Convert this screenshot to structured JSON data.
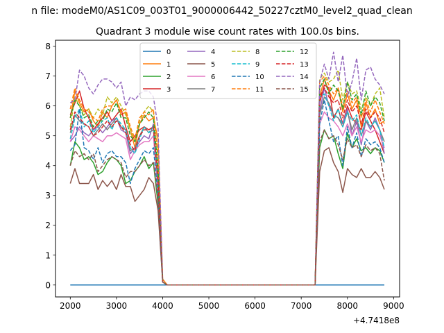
{
  "figure": {
    "suptitle": "n file: modeM0/AS1C09_003T01_9000006442_50227cztM0_level2_quad_clean",
    "offset_text": "+4.7418e8"
  },
  "chart_data": {
    "type": "line",
    "title": "Quadrant 3 module wise count rates with 100.0s bins.",
    "xlabel": "",
    "ylabel": "",
    "xlim": [
      1680,
      9130
    ],
    "ylim": [
      -0.4,
      8.2
    ],
    "xticks": [
      2000,
      3000,
      4000,
      5000,
      6000,
      7000,
      8000,
      9000
    ],
    "yticks": [
      0,
      1,
      2,
      3,
      4,
      5,
      6,
      7,
      8
    ],
    "grid": false,
    "legend": {
      "placement": "upper-center",
      "columns": 4
    },
    "x": [
      2000,
      2100,
      2200,
      2300,
      2400,
      2500,
      2600,
      2700,
      2800,
      2900,
      3000,
      3100,
      3200,
      3300,
      3400,
      3500,
      3600,
      3700,
      3800,
      3900,
      4000,
      4100,
      4200,
      4300,
      4400,
      4500,
      4600,
      4700,
      4800,
      4900,
      5000,
      5100,
      5200,
      5300,
      5400,
      5500,
      5600,
      5700,
      5800,
      5900,
      6000,
      6100,
      6200,
      6300,
      6400,
      6500,
      6600,
      6700,
      6800,
      6900,
      7000,
      7100,
      7200,
      7300,
      7400,
      7500,
      7600,
      7700,
      7800,
      7900,
      8000,
      8100,
      8200,
      8300,
      8400,
      8500,
      8600,
      8700,
      8800
    ],
    "series": [
      {
        "name": "0",
        "color": "#1f77b4",
        "dash": "solid",
        "values": [
          0,
          0,
          0,
          0,
          0,
          0,
          0,
          0,
          0,
          0,
          0,
          0,
          0,
          0,
          0,
          0,
          0,
          0,
          0,
          0,
          0,
          0,
          0,
          0,
          0,
          0,
          0,
          0,
          0,
          0,
          0,
          0,
          0,
          0,
          0,
          0,
          0,
          0,
          0,
          0,
          0,
          0,
          0,
          0,
          0,
          0,
          0,
          0,
          0,
          0,
          0,
          0,
          0,
          0,
          0,
          0,
          0,
          0,
          0,
          0,
          0,
          0,
          0,
          0,
          0,
          0,
          0,
          0,
          0
        ]
      },
      {
        "name": "1",
        "color": "#ff7f0e",
        "dash": "solid",
        "values": [
          5.6,
          6.5,
          6.1,
          5.8,
          5.9,
          5.5,
          5.3,
          5.8,
          5.6,
          6.0,
          6.2,
          5.7,
          5.8,
          5.2,
          4.6,
          5.4,
          5.7,
          5.5,
          5.6,
          4.9,
          0.2,
          0,
          0,
          0,
          0,
          0,
          0,
          0,
          0,
          0,
          0,
          0,
          0,
          0,
          0,
          0,
          0,
          0,
          0,
          0,
          0,
          0,
          0,
          0,
          0,
          0,
          0,
          0,
          0,
          0,
          0,
          0,
          0,
          0,
          6.3,
          6.9,
          6.5,
          6.2,
          6.6,
          5.8,
          6.4,
          5.9,
          6.2,
          5.3,
          6.1,
          5.6,
          5.9,
          5.4,
          5.5
        ]
      },
      {
        "name": "2",
        "color": "#2ca02c",
        "dash": "solid",
        "values": [
          4.0,
          4.8,
          4.6,
          4.2,
          4.3,
          4.1,
          3.7,
          3.8,
          4.1,
          4.3,
          4.2,
          4.0,
          3.4,
          3.5,
          3.8,
          4.0,
          4.3,
          3.9,
          4.1,
          2.7,
          0.1,
          0,
          0,
          0,
          0,
          0,
          0,
          0,
          0,
          0,
          0,
          0,
          0,
          0,
          0,
          0,
          0,
          0,
          0,
          0,
          0,
          0,
          0,
          0,
          0,
          0,
          0,
          0,
          0,
          0,
          0,
          0,
          0,
          0,
          4.6,
          5.2,
          4.9,
          5.0,
          4.4,
          3.9,
          5.1,
          4.6,
          4.9,
          4.5,
          4.6,
          4.4,
          4.6,
          4.5,
          4.1
        ]
      },
      {
        "name": "3",
        "color": "#d62728",
        "dash": "solid",
        "values": [
          5.7,
          6.1,
          6.5,
          5.9,
          5.6,
          5.2,
          5.4,
          5.6,
          5.8,
          5.5,
          5.7,
          5.9,
          5.3,
          4.8,
          5.0,
          5.2,
          5.3,
          5.2,
          5.3,
          3.6,
          0.1,
          0,
          0,
          0,
          0,
          0,
          0,
          0,
          0,
          0,
          0,
          0,
          0,
          0,
          0,
          0,
          0,
          0,
          0,
          0,
          0,
          0,
          0,
          0,
          0,
          0,
          0,
          0,
          0,
          0,
          0,
          0,
          0,
          0,
          6.1,
          6.7,
          6.6,
          5.6,
          5.9,
          5.4,
          6.0,
          5.6,
          5.4,
          5.2,
          5.8,
          5.5,
          5.2,
          4.8,
          4.4
        ]
      },
      {
        "name": "4",
        "color": "#9467bd",
        "dash": "solid",
        "values": [
          4.8,
          5.0,
          5.3,
          5.1,
          5.0,
          5.2,
          5.3,
          5.1,
          5.3,
          5.5,
          5.6,
          5.2,
          5.1,
          4.4,
          4.6,
          4.8,
          5.0,
          4.9,
          5.4,
          3.2,
          0.1,
          0,
          0,
          0,
          0,
          0,
          0,
          0,
          0,
          0,
          0,
          0,
          0,
          0,
          0,
          0,
          0,
          0,
          0,
          0,
          0,
          0,
          0,
          0,
          0,
          0,
          0,
          0,
          0,
          0,
          0,
          0,
          0,
          0,
          5.8,
          6.6,
          6.0,
          5.7,
          5.6,
          5.4,
          5.9,
          5.0,
          5.5,
          4.7,
          5.5,
          5.2,
          5.6,
          5.2,
          4.4
        ]
      },
      {
        "name": "5",
        "color": "#8c564b",
        "dash": "solid",
        "values": [
          3.4,
          3.9,
          3.4,
          3.4,
          3.4,
          3.7,
          3.2,
          3.5,
          3.3,
          3.5,
          3.2,
          3.7,
          3.3,
          3.3,
          2.8,
          3.0,
          3.2,
          3.6,
          3.4,
          2.5,
          0.1,
          0,
          0,
          0,
          0,
          0,
          0,
          0,
          0,
          0,
          0,
          0,
          0,
          0,
          0,
          0,
          0,
          0,
          0,
          0,
          0,
          0,
          0,
          0,
          0,
          0,
          0,
          0,
          0,
          0,
          0,
          0,
          0,
          0,
          3.8,
          4.5,
          4.6,
          4.1,
          3.8,
          3.1,
          3.9,
          3.7,
          3.6,
          3.9,
          3.6,
          3.6,
          3.8,
          3.6,
          3.2
        ]
      },
      {
        "name": "6",
        "color": "#e377c2",
        "dash": "solid",
        "values": [
          4.8,
          5.3,
          5.2,
          5.0,
          4.8,
          5.0,
          4.9,
          4.8,
          5.0,
          5.0,
          5.1,
          5.0,
          4.9,
          4.2,
          4.5,
          4.7,
          4.8,
          4.8,
          5.0,
          3.1,
          0.1,
          0,
          0,
          0,
          0,
          0,
          0,
          0,
          0,
          0,
          0,
          0,
          0,
          0,
          0,
          0,
          0,
          0,
          0,
          0,
          0,
          0,
          0,
          0,
          0,
          0,
          0,
          0,
          0,
          0,
          0,
          0,
          0,
          0,
          5.4,
          5.8,
          5.6,
          5.5,
          5.3,
          5.0,
          5.4,
          5.0,
          5.3,
          4.8,
          5.2,
          5.1,
          5.2,
          5.0,
          4.6
        ]
      },
      {
        "name": "7",
        "color": "#7f7f7f",
        "dash": "solid",
        "values": [
          5.1,
          5.7,
          5.5,
          5.4,
          5.3,
          5.0,
          5.2,
          5.4,
          5.2,
          5.4,
          5.6,
          5.3,
          5.2,
          4.5,
          4.6,
          5.0,
          5.3,
          5.1,
          5.2,
          3.4,
          0.1,
          0,
          0,
          0,
          0,
          0,
          0,
          0,
          0,
          0,
          0,
          0,
          0,
          0,
          0,
          0,
          0,
          0,
          0,
          0,
          0,
          0,
          0,
          0,
          0,
          0,
          0,
          0,
          0,
          0,
          0,
          0,
          0,
          0,
          5.7,
          6.3,
          6.1,
          5.7,
          5.6,
          5.3,
          5.8,
          5.2,
          5.6,
          5.0,
          5.5,
          5.3,
          5.5,
          5.2,
          4.8
        ]
      },
      {
        "name": "8",
        "color": "#bcbd22",
        "dash": "dashed",
        "values": [
          5.3,
          6.3,
          6.0,
          5.7,
          5.9,
          5.6,
          5.9,
          5.7,
          6.3,
          6.1,
          6.3,
          6.0,
          5.7,
          5.2,
          4.8,
          5.5,
          5.8,
          6.0,
          5.8,
          4.4,
          0.1,
          0,
          0,
          0,
          0,
          0,
          0,
          0,
          0,
          0,
          0,
          0,
          0,
          0,
          0,
          0,
          0,
          0,
          0,
          0,
          0,
          0,
          0,
          0,
          0,
          0,
          0,
          0,
          0,
          0,
          0,
          0,
          0,
          0,
          6.9,
          7.1,
          6.8,
          6.9,
          7.2,
          6.2,
          6.8,
          6.4,
          6.5,
          5.9,
          6.3,
          6.0,
          6.4,
          6.6,
          5.6
        ]
      },
      {
        "name": "9",
        "color": "#17becf",
        "dash": "dashed",
        "values": [
          4.9,
          5.6,
          5.9,
          5.3,
          5.5,
          5.1,
          5.3,
          5.5,
          5.6,
          5.2,
          5.6,
          5.4,
          5.2,
          4.6,
          4.4,
          4.9,
          5.3,
          5.1,
          5.3,
          3.6,
          0.1,
          0,
          0,
          0,
          0,
          0,
          0,
          0,
          0,
          0,
          0,
          0,
          0,
          0,
          0,
          0,
          0,
          0,
          0,
          0,
          0,
          0,
          0,
          0,
          0,
          0,
          0,
          0,
          0,
          0,
          0,
          0,
          0,
          0,
          6.3,
          6.4,
          6.0,
          5.5,
          5.9,
          5.3,
          5.8,
          5.5,
          5.7,
          5.0,
          5.6,
          5.3,
          5.5,
          5.2,
          4.6
        ]
      },
      {
        "name": "10",
        "color": "#1f77b4",
        "dash": "dashed",
        "values": [
          4.5,
          4.7,
          5.9,
          4.6,
          4.5,
          4.2,
          4.6,
          4.1,
          4.4,
          4.5,
          4.3,
          4.3,
          4.1,
          3.4,
          3.9,
          4.2,
          4.5,
          4.4,
          4.6,
          3.0,
          0.1,
          0,
          0,
          0,
          0,
          0,
          0,
          0,
          0,
          0,
          0,
          0,
          0,
          0,
          0,
          0,
          0,
          0,
          0,
          0,
          0,
          0,
          0,
          0,
          0,
          0,
          0,
          0,
          0,
          0,
          0,
          0,
          0,
          0,
          5.4,
          6.2,
          5.5,
          4.8,
          5.0,
          4.0,
          5.3,
          4.6,
          5.1,
          4.3,
          4.9,
          4.7,
          4.8,
          4.6,
          4.1
        ]
      },
      {
        "name": "11",
        "color": "#ff7f0e",
        "dash": "dashed",
        "values": [
          5.9,
          6.6,
          6.2,
          5.9,
          5.8,
          5.6,
          5.5,
          5.9,
          6.0,
          6.0,
          6.2,
          5.8,
          5.9,
          5.3,
          4.9,
          5.6,
          5.8,
          5.7,
          5.9,
          4.2,
          0.1,
          0,
          0,
          0,
          0,
          0,
          0,
          0,
          0,
          0,
          0,
          0,
          0,
          0,
          0,
          0,
          0,
          0,
          0,
          0,
          0,
          0,
          0,
          0,
          0,
          0,
          0,
          0,
          0,
          0,
          0,
          0,
          0,
          0,
          6.8,
          7.0,
          6.7,
          6.4,
          6.6,
          6.0,
          6.5,
          6.1,
          6.3,
          5.6,
          6.2,
          5.8,
          6.2,
          5.8,
          5.4
        ]
      },
      {
        "name": "12",
        "color": "#2ca02c",
        "dash": "dashed",
        "values": [
          5.6,
          6.2,
          6.0,
          5.6,
          5.7,
          5.3,
          5.5,
          5.5,
          5.9,
          5.8,
          6.1,
          5.6,
          5.6,
          5.0,
          4.8,
          5.4,
          5.6,
          5.8,
          5.6,
          3.9,
          0.1,
          0,
          0,
          0,
          0,
          0,
          0,
          0,
          0,
          0,
          0,
          0,
          0,
          0,
          0,
          0,
          0,
          0,
          0,
          0,
          0,
          0,
          0,
          0,
          0,
          0,
          0,
          0,
          0,
          0,
          0,
          0,
          0,
          0,
          6.6,
          6.9,
          6.4,
          6.7,
          6.5,
          5.9,
          6.8,
          6.2,
          6.4,
          5.7,
          6.5,
          6.0,
          6.3,
          6.1,
          5.5
        ]
      },
      {
        "name": "13",
        "color": "#d62728",
        "dash": "dashed",
        "values": [
          5.2,
          5.8,
          5.6,
          5.4,
          5.3,
          5.0,
          5.1,
          5.3,
          5.5,
          5.3,
          5.5,
          5.3,
          5.1,
          4.7,
          4.5,
          5.0,
          5.2,
          5.2,
          5.3,
          3.5,
          0.1,
          0,
          0,
          0,
          0,
          0,
          0,
          0,
          0,
          0,
          0,
          0,
          0,
          0,
          0,
          0,
          0,
          0,
          0,
          0,
          0,
          0,
          0,
          0,
          0,
          0,
          0,
          0,
          0,
          0,
          0,
          0,
          0,
          0,
          6.3,
          6.6,
          6.3,
          6.1,
          6.2,
          5.6,
          6.2,
          5.8,
          6.0,
          5.4,
          5.9,
          5.6,
          5.8,
          5.6,
          5.1
        ]
      },
      {
        "name": "14",
        "color": "#9467bd",
        "dash": "dashed",
        "values": [
          6.1,
          6.2,
          7.2,
          7.0,
          6.6,
          6.4,
          6.7,
          6.9,
          6.9,
          6.8,
          6.6,
          6.8,
          6.0,
          6.3,
          6.2,
          6.4,
          6.5,
          6.5,
          6.3,
          5.3,
          0.1,
          0,
          0,
          0,
          0,
          0,
          0,
          0,
          0,
          0,
          0,
          0,
          0,
          0,
          0,
          0,
          0,
          0,
          0,
          0,
          0,
          0,
          0,
          0,
          0,
          0,
          0,
          0,
          0,
          0,
          0,
          0,
          0,
          0,
          6.8,
          7.4,
          6.9,
          7.8,
          6.8,
          7.7,
          6.3,
          6.8,
          7.6,
          6.2,
          7.2,
          7.3,
          6.9,
          6.7,
          6.4
        ]
      },
      {
        "name": "15",
        "color": "#8c564b",
        "dash": "dashed",
        "values": [
          4.0,
          4.5,
          4.3,
          4.4,
          4.2,
          4.4,
          3.8,
          4.0,
          4.2,
          4.3,
          4.2,
          4.1,
          3.6,
          3.8,
          3.8,
          4.0,
          4.2,
          4.0,
          4.1,
          2.9,
          0.1,
          0,
          0,
          0,
          0,
          0,
          0,
          0,
          0,
          0,
          0,
          0,
          0,
          0,
          0,
          0,
          0,
          0,
          0,
          0,
          0,
          0,
          0,
          0,
          0,
          0,
          0,
          0,
          0,
          0,
          0,
          0,
          0,
          0,
          4.8,
          5.2,
          4.9,
          5.0,
          4.7,
          4.2,
          4.9,
          4.6,
          4.7,
          4.3,
          4.7,
          4.5,
          4.6,
          4.4,
          3.5
        ]
      }
    ]
  }
}
